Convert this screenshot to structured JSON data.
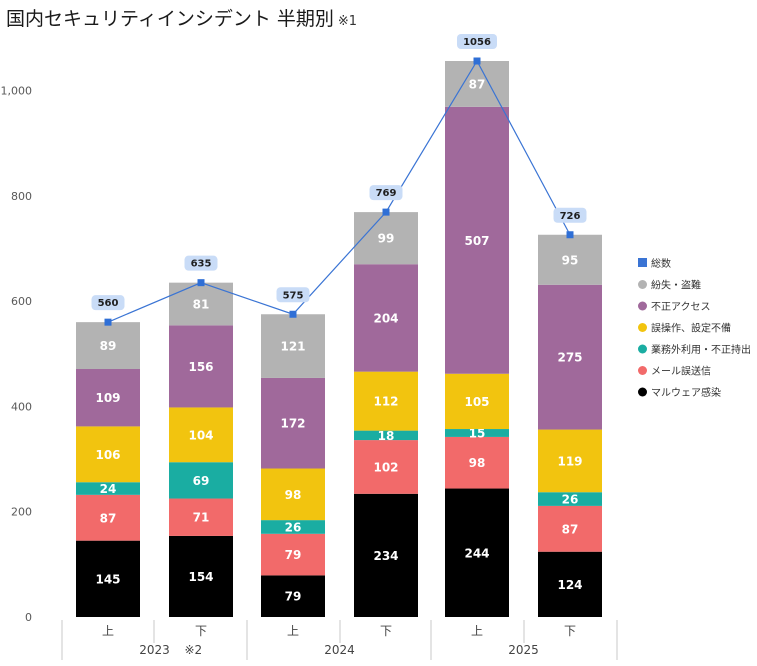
{
  "title": "国内セキュリティインシデント 半期別",
  "title_note": "※1",
  "chart_data": {
    "type": "bar",
    "stacked": true,
    "title": "国内セキュリティインシデント 半期別",
    "categories": [
      "上",
      "下",
      "上",
      "下",
      "上",
      "下"
    ],
    "year_groups": [
      {
        "label": "2023",
        "note": "※2",
        "span": [
          0,
          1
        ]
      },
      {
        "label": "2024",
        "note": "",
        "span": [
          2,
          3
        ]
      },
      {
        "label": "2025",
        "note": "",
        "span": [
          4,
          5
        ]
      }
    ],
    "ylim": [
      0,
      1056
    ],
    "yticks": [
      0,
      200,
      400,
      600,
      800,
      1000
    ],
    "ytick_labels": [
      "0",
      "200",
      "400",
      "600",
      "800",
      "1,000"
    ],
    "grid": false,
    "legend_position": "right",
    "series": [
      {
        "name": "マルウェア感染",
        "color": "#000000",
        "values": [
          145,
          154,
          79,
          234,
          244,
          124
        ]
      },
      {
        "name": "メール誤送信",
        "color": "#f26a6a",
        "values": [
          87,
          71,
          79,
          102,
          98,
          87
        ]
      },
      {
        "name": "業務外利用・不正持出",
        "color": "#1aada2",
        "values": [
          24,
          69,
          26,
          18,
          15,
          26
        ]
      },
      {
        "name": "誤操作、設定不備",
        "color": "#f2c40f",
        "values": [
          106,
          104,
          98,
          112,
          105,
          119
        ]
      },
      {
        "name": "不正アクセス",
        "color": "#a0699b",
        "values": [
          109,
          156,
          172,
          204,
          507,
          275
        ]
      },
      {
        "name": "紛失・盗難",
        "color": "#b3b3b3",
        "values": [
          89,
          81,
          121,
          99,
          87,
          95
        ]
      }
    ],
    "line_series": {
      "name": "総数",
      "color": "#3a74d4",
      "values": [
        560,
        635,
        575,
        769,
        1056,
        726
      ]
    }
  }
}
